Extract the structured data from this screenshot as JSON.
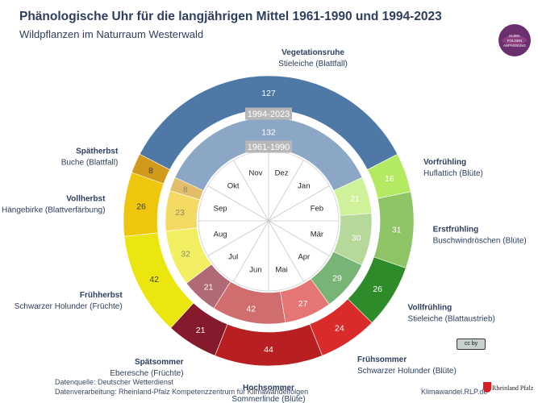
{
  "header": {
    "title": "Phänologische Uhr für die langjährigen Mittel 1961-1990 und 1994-2023",
    "subtitle": "Wildpflanzen im Naturraum Westerwald"
  },
  "logo": {
    "lines": [
      "KLIMA",
      "FOLGEN",
      "ANPASSUNG"
    ]
  },
  "footer": {
    "source": "Datenquelle: Deutscher Wetterdienst",
    "processing": "Datenverarbeitung: Rheinland-Pfalz Kompetenzzentrum für Klimawandelfolgen",
    "website": "Klimawandel.RLP.de",
    "rlp_logo": "Rheinland Pfalz",
    "license": "cc by"
  },
  "chart_data": {
    "type": "pie",
    "start_month": "Dez",
    "outer_ring_label": "1994-2023",
    "inner_ring_label": "1961-1990",
    "months": [
      "Dez",
      "Jan",
      "Feb",
      "Mär",
      "Apr",
      "Mai",
      "Jun",
      "Jul",
      "Aug",
      "Sep",
      "Okt",
      "Nov"
    ],
    "phases": [
      {
        "name": "Vegetationsruhe",
        "indicator": "Stieleiche (Blattfall)",
        "days_1994_2023": 127,
        "days_1961_1990": 132,
        "color": "#4e78a6"
      },
      {
        "name": "Vorfrühling",
        "indicator": "Huflattich (Blüte)",
        "days_1994_2023": 16,
        "days_1961_1990": 21,
        "color": "#b4ea62"
      },
      {
        "name": "Erstfrühling",
        "indicator": "Buschwindröschen (Blüte)",
        "days_1994_2023": 31,
        "days_1961_1990": 30,
        "color": "#8ec465"
      },
      {
        "name": "Vollfrühling",
        "indicator": "Stieleiche (Blattaustrieb)",
        "days_1994_2023": 26,
        "days_1961_1990": 29,
        "color": "#2e8b2a"
      },
      {
        "name": "Frühsommer",
        "indicator": "Schwarzer Holunder (Blüte)",
        "days_1994_2023": 24,
        "days_1961_1990": 27,
        "color": "#d92b2a"
      },
      {
        "name": "Hochsommer",
        "indicator": "Sommerlinde (Blüte)",
        "days_1994_2023": 44,
        "days_1961_1990": 42,
        "color": "#b71f21"
      },
      {
        "name": "Spätsommer",
        "indicator": "Eberesche (Früchte)",
        "days_1994_2023": 21,
        "days_1961_1990": 21,
        "color": "#841a2c"
      },
      {
        "name": "Frühherbst",
        "indicator": "Schwarzer Holunder (Früchte)",
        "days_1994_2023": 42,
        "days_1961_1990": 32,
        "color": "#ece60f"
      },
      {
        "name": "Vollherbst",
        "indicator": "Hängebirke (Blattverfärbung)",
        "days_1994_2023": 26,
        "days_1961_1990": 23,
        "color": "#eec60e"
      },
      {
        "name": "Spätherbst",
        "indicator": "Buche (Blattfall)",
        "days_1994_2023": 8,
        "days_1961_1990": 8,
        "color": "#d29a1a"
      }
    ]
  }
}
